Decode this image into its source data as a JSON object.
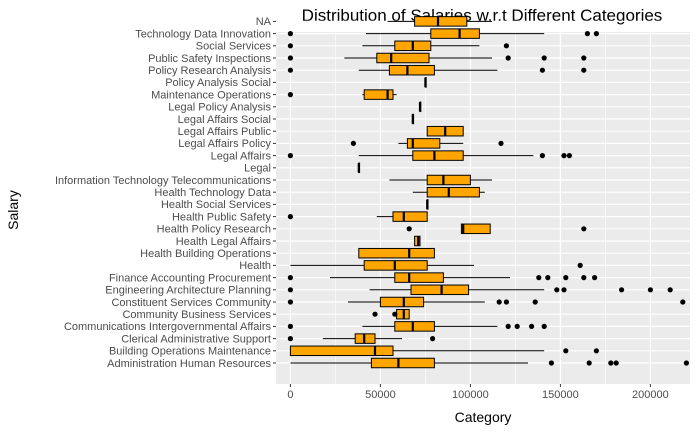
{
  "chart_data": {
    "type": "boxplot",
    "title": "Distribution of Salaries w.r.t Different Categories",
    "xlabel": "Category",
    "ylabel": "Salary",
    "xlim": [
      -8000,
      222000
    ],
    "x_ticks": [
      0,
      50000,
      100000,
      150000,
      200000
    ],
    "x_tick_labels": [
      "0",
      "50000",
      "100000",
      "150000",
      "200000"
    ],
    "box_fill": "#FFA500",
    "panel_background": "#EBEBEB",
    "grid": true,
    "categories": [
      {
        "name": "NA",
        "whisker_low": 54000,
        "q1": 69000,
        "median": 82000,
        "q3": 98000,
        "whisker_high": 112000,
        "outliers": []
      },
      {
        "name": "Technology Data  Innovation",
        "whisker_low": 42000,
        "q1": 78000,
        "median": 94000,
        "q3": 105000,
        "whisker_high": 141000,
        "outliers": [
          0,
          165000,
          170000
        ]
      },
      {
        "name": "Social Services",
        "whisker_low": 40000,
        "q1": 58000,
        "median": 68000,
        "q3": 78000,
        "whisker_high": 105000,
        "outliers": [
          0,
          120000
        ]
      },
      {
        "name": "Public Safety Inspections",
        "whisker_low": 30000,
        "q1": 48000,
        "median": 56000,
        "q3": 77000,
        "whisker_high": 112000,
        "outliers": [
          0,
          121000,
          141000,
          163000
        ]
      },
      {
        "name": "Policy Research  Analysis",
        "whisker_low": 38000,
        "q1": 55000,
        "median": 65000,
        "q3": 80000,
        "whisker_high": 115000,
        "outliers": [
          0,
          140000,
          163000
        ]
      },
      {
        "name": "Policy  Analysis Social",
        "whisker_low": 75000,
        "q1": 75000,
        "median": 75000,
        "q3": 75000,
        "whisker_high": 75000,
        "outliers": []
      },
      {
        "name": "Maintenance  Operations",
        "whisker_low": 40000,
        "q1": 41000,
        "median": 54000,
        "q3": 57000,
        "whisker_high": 59000,
        "outliers": [
          0
        ]
      },
      {
        "name": "Legal Policy  Analysis",
        "whisker_low": 72000,
        "q1": 72000,
        "median": 72000,
        "q3": 72000,
        "whisker_high": 72000,
        "outliers": []
      },
      {
        "name": "Legal Affairs Social",
        "whisker_low": 68000,
        "q1": 68000,
        "median": 68000,
        "q3": 68000,
        "whisker_high": 68000,
        "outliers": []
      },
      {
        "name": "Legal Affairs Public",
        "whisker_low": 76000,
        "q1": 76000,
        "median": 86000,
        "q3": 96000,
        "whisker_high": 96000,
        "outliers": []
      },
      {
        "name": "Legal Affairs Policy",
        "whisker_low": 60000,
        "q1": 65000,
        "median": 68000,
        "q3": 83000,
        "whisker_high": 96000,
        "outliers": [
          35000,
          117000
        ]
      },
      {
        "name": "Legal Affairs",
        "whisker_low": 38000,
        "q1": 68000,
        "median": 80000,
        "q3": 96000,
        "whisker_high": 135000,
        "outliers": [
          0,
          140000,
          152000,
          155000
        ]
      },
      {
        "name": "Legal",
        "whisker_low": 38000,
        "q1": 38000,
        "median": 38000,
        "q3": 38000,
        "whisker_high": 38000,
        "outliers": []
      },
      {
        "name": "Information Technology  Telecommunications",
        "whisker_low": 55000,
        "q1": 76000,
        "median": 85000,
        "q3": 100000,
        "whisker_high": 112000,
        "outliers": []
      },
      {
        "name": "Health Technology Data",
        "whisker_low": 68000,
        "q1": 76000,
        "median": 88000,
        "q3": 105000,
        "whisker_high": 108000,
        "outliers": []
      },
      {
        "name": "Health Social Services",
        "whisker_low": 76000,
        "q1": 76000,
        "median": 76000,
        "q3": 76000,
        "whisker_high": 76000,
        "outliers": []
      },
      {
        "name": "Health Public Safety",
        "whisker_low": 48000,
        "q1": 57000,
        "median": 63000,
        "q3": 76000,
        "whisker_high": 76000,
        "outliers": [
          0
        ]
      },
      {
        "name": "Health Policy Research",
        "whisker_low": 95000,
        "q1": 95000,
        "median": 96000,
        "q3": 111000,
        "whisker_high": 111000,
        "outliers": [
          66000,
          163000
        ]
      },
      {
        "name": "Health Legal Affairs",
        "whisker_low": 69000,
        "q1": 69000,
        "median": 71000,
        "q3": 72000,
        "whisker_high": 72000,
        "outliers": []
      },
      {
        "name": "Health Building Operations",
        "whisker_low": 38000,
        "q1": 38000,
        "median": 66000,
        "q3": 80000,
        "whisker_high": 80000,
        "outliers": []
      },
      {
        "name": "Health",
        "whisker_low": 0,
        "q1": 41000,
        "median": 58000,
        "q3": 76000,
        "whisker_high": 102000,
        "outliers": [
          161000
        ]
      },
      {
        "name": "Finance Accounting  Procurement",
        "whisker_low": 22000,
        "q1": 58000,
        "median": 66000,
        "q3": 85000,
        "whisker_high": 122000,
        "outliers": [
          0,
          138000,
          143000,
          153000,
          163000,
          169000
        ]
      },
      {
        "name": "Engineering Architecture  Planning",
        "whisker_low": 44000,
        "q1": 67000,
        "median": 84000,
        "q3": 99000,
        "whisker_high": 141000,
        "outliers": [
          0,
          148000,
          152000,
          184000,
          200000,
          211000
        ]
      },
      {
        "name": "Constituent Services  Community",
        "whisker_low": 32000,
        "q1": 50000,
        "median": 63000,
        "q3": 74000,
        "whisker_high": 108000,
        "outliers": [
          0,
          116000,
          120000,
          136000,
          218000
        ]
      },
      {
        "name": "Community  Business Services",
        "whisker_low": 59000,
        "q1": 59000,
        "median": 63000,
        "q3": 66000,
        "whisker_high": 66000,
        "outliers": [
          47000,
          58000
        ]
      },
      {
        "name": "Communications  Intergovernmental Affairs",
        "whisker_low": 40000,
        "q1": 58000,
        "median": 68000,
        "q3": 80000,
        "whisker_high": 115000,
        "outliers": [
          0,
          121000,
          126000,
          134000,
          141000
        ]
      },
      {
        "name": "Clerical  Administrative Support",
        "whisker_low": 18000,
        "q1": 36000,
        "median": 41000,
        "q3": 47000,
        "whisker_high": 62000,
        "outliers": [
          0,
          79000
        ]
      },
      {
        "name": "Building Operations  Maintenance",
        "whisker_low": 0,
        "q1": 0,
        "median": 47000,
        "q3": 57000,
        "whisker_high": 141000,
        "outliers": [
          153000,
          170000
        ]
      },
      {
        "name": "Administration  Human Resources",
        "whisker_low": 0,
        "q1": 45000,
        "median": 60000,
        "q3": 80000,
        "whisker_high": 132000,
        "outliers": [
          145000,
          166000,
          178000,
          181000,
          220000
        ]
      }
    ]
  }
}
